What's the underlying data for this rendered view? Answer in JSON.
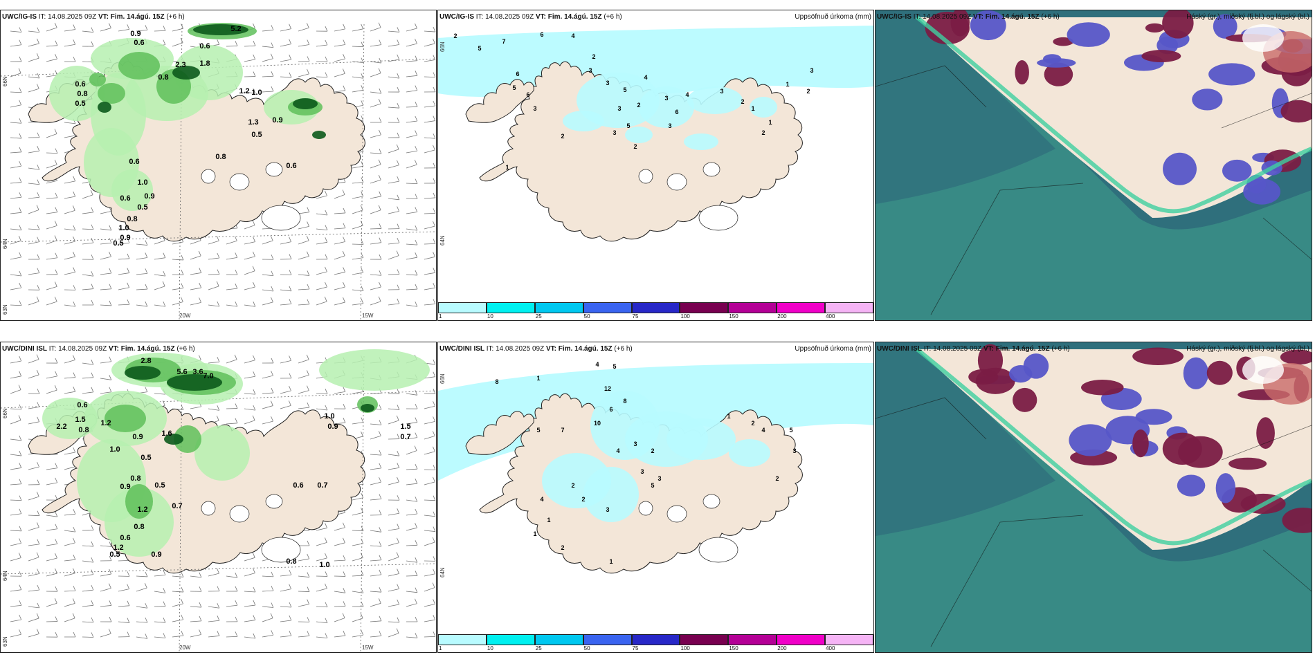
{
  "panels": [
    {
      "id": "ig-wind",
      "model": "UWC/IG-IS",
      "it_label": "IT:",
      "it_value": "14.08.2025 09Z",
      "vt_label": "VT:",
      "vt_value": "Fim. 14.ágú. 15Z",
      "lead": "(+6 h)",
      "right_title": "",
      "axis_labels": {
        "lon1": "20W",
        "lon2": "15W",
        "lat1": "66N",
        "lat2": "64N",
        "lat3": "63N"
      },
      "values": [
        "5.2",
        "0.9",
        "0.6",
        "0.6",
        "2.3",
        "1.8",
        "0.8",
        "0.6",
        "0.8",
        "0.5",
        "1.2",
        "1.0",
        "0.9",
        "1.3",
        "0.5",
        "0.8",
        "0.6",
        "1.0",
        "0.9",
        "0.6",
        "0.5",
        "0.8",
        "1.0",
        "0.9",
        "0.5",
        "0.6"
      ]
    },
    {
      "id": "ig-precip",
      "model": "UWC/IG-IS",
      "it_label": "IT:",
      "it_value": "14.08.2025 09Z",
      "vt_label": "VT:",
      "vt_value": "Fim. 14.ágú. 15Z",
      "lead": "(+6 h)",
      "right_title": "Uppsöfnuð úrkoma (mm)",
      "axis_labels": {
        "lat1": "66N",
        "lat2": "64N"
      },
      "values": [
        "2",
        "5",
        "7",
        "6",
        "4",
        "2",
        "3",
        "3",
        "3",
        "2",
        "5",
        "4",
        "3",
        "6",
        "5",
        "3",
        "2",
        "3",
        "4",
        "3",
        "2",
        "1",
        "2",
        "1",
        "1",
        "2",
        "3",
        "6",
        "5",
        "6",
        "3",
        "2",
        "1"
      ]
    },
    {
      "id": "ig-cloud",
      "model": "UWC/IG-IS",
      "it_label": "IT:",
      "it_value": "14.08.2025 09Z",
      "vt_label": "VT:",
      "vt_value": "Fim. 14.ágú. 15Z",
      "lead": "(+6 h)",
      "right_title": "Háský (gr.), miðský (fj.bl.) og lágský (bl.)"
    },
    {
      "id": "dini-wind",
      "model": "UWC/DINI ISL",
      "it_label": "IT:",
      "it_value": "14.08.2025 09Z",
      "vt_label": "VT:",
      "vt_value": "Fim. 14.ágú. 15Z",
      "lead": "(+6 h)",
      "right_title": "",
      "axis_labels": {
        "lon1": "20W",
        "lon2": "15W",
        "lat1": "66N",
        "lat2": "64N",
        "lat3": "63N"
      },
      "values": [
        "2.8",
        "5.6",
        "3.6",
        "7.0",
        "1.0",
        "0.9",
        "0.6",
        "1.5",
        "0.8",
        "2.2",
        "1.2",
        "0.9",
        "1.6",
        "1.0",
        "0.5",
        "0.8",
        "0.9",
        "0.5",
        "0.7",
        "1.2",
        "0.8",
        "0.6",
        "1.2",
        "0.9",
        "0.5",
        "0.6",
        "0.7",
        "1.0",
        "0.8",
        "1.5",
        "0.7"
      ]
    },
    {
      "id": "dini-precip",
      "model": "UWC/DINI ISL",
      "it_label": "IT:",
      "it_value": "14.08.2025 09Z",
      "vt_label": "VT:",
      "vt_value": "Fim. 14.ágú. 15Z",
      "lead": "(+6 h)",
      "right_title": "Uppsöfnuð úrkoma (mm)",
      "axis_labels": {
        "lat1": "66N",
        "lat2": "64N"
      },
      "values": [
        "1",
        "4",
        "5",
        "8",
        "12",
        "8",
        "6",
        "10",
        "7",
        "5",
        "4",
        "3",
        "2",
        "3",
        "5",
        "2",
        "1",
        "2",
        "3",
        "4",
        "2",
        "3",
        "1",
        "2",
        "4",
        "5",
        "3",
        "2",
        "1",
        "1"
      ]
    },
    {
      "id": "dini-cloud",
      "model": "UWC/DINI ISL",
      "it_label": "IT:",
      "it_value": "14.08.2025 09Z",
      "vt_label": "VT:",
      "vt_value": "Fim. 14.ágú. 15Z",
      "lead": "(+6 h)",
      "right_title": "Háský (gr.), miðský (fj.bl.) og lágský (bl.)"
    }
  ],
  "colorbar": {
    "labels": [
      "1",
      "10",
      "25",
      "50",
      "75",
      "100",
      "150",
      "200",
      "400"
    ],
    "colors": [
      "#b8fbff",
      "#00f0f0",
      "#00c8f0",
      "#3a64f0",
      "#2828c8",
      "#780050",
      "#b40096",
      "#f000c8",
      "#f5b4f5"
    ]
  },
  "colors": {
    "land": "#f3e6d8",
    "coast": "#222222",
    "green_light": "#b6f0b0",
    "green_mid": "#5fbf5a",
    "green_dark": "#0c5a1c",
    "cyan": "#b8fbff",
    "teal_dark": "#2f6f7c",
    "teal_mid": "#3f9c8c",
    "sky_violet": "#5656c8",
    "sky_maroon": "#7a1c44",
    "sky_coral": "#c96b6a"
  }
}
